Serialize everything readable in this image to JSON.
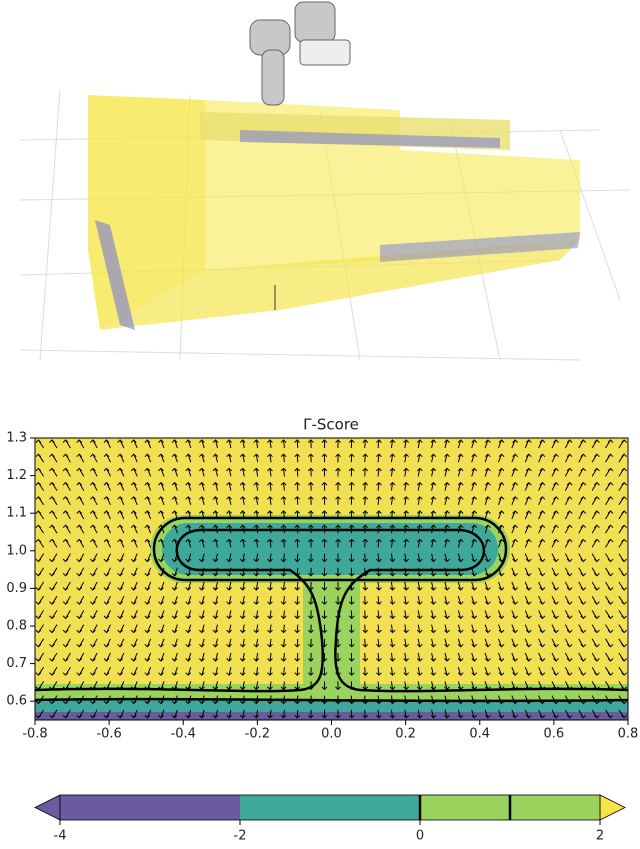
{
  "chart_data": {
    "type": "contour",
    "title": "Γ-Score",
    "xlim": [
      -0.8,
      0.8
    ],
    "xticks": [
      -0.8,
      -0.6,
      -0.4,
      -0.2,
      {
        "value": 0,
        "label": "0.0"
      },
      0.2,
      0.4,
      0.6,
      0.8
    ],
    "ylim": [
      0.55,
      1.3
    ],
    "yticks": [
      0.6,
      0.7,
      0.8,
      0.9,
      {
        "value": 1,
        "label": "1.0"
      },
      1.1,
      1.2,
      1.3
    ],
    "colorbar": {
      "levels": [
        -4,
        -2,
        0,
        1,
        2
      ],
      "colors": [
        "#6b5b9e",
        "#3ea99a",
        "#9ad35e",
        "#9ad35e"
      ],
      "extend_colors": [
        "#6b5b9e",
        "#f7e34a"
      ],
      "ticks": [
        -4,
        -2,
        0,
        2
      ],
      "lines": [
        0,
        1
      ]
    }
  }
}
